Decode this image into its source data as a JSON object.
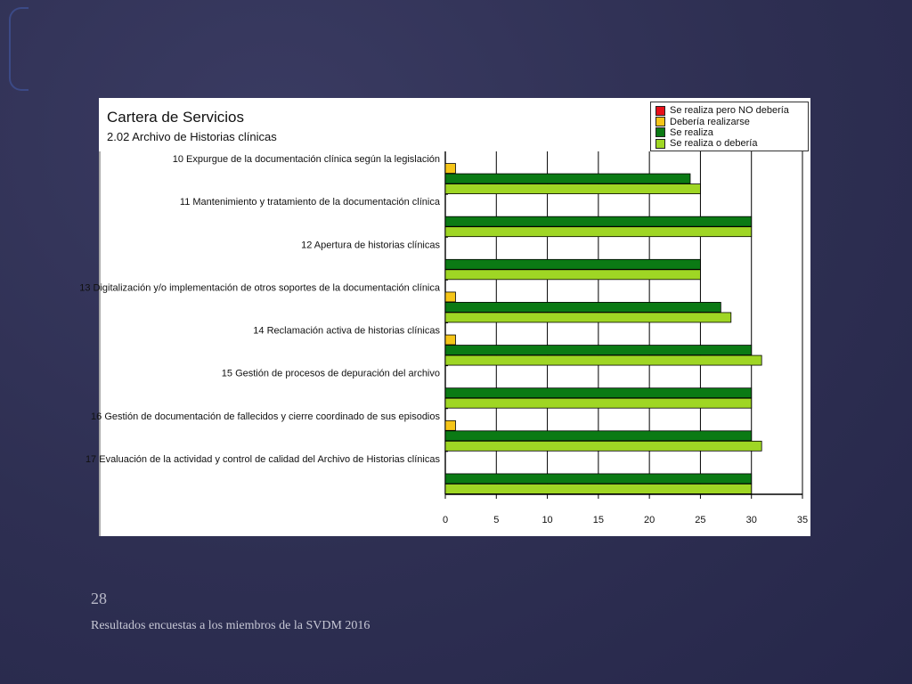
{
  "slide": {
    "number": "28",
    "footer": "Resultados encuestas a los miembros de la SVDM 2016"
  },
  "chart_data": {
    "type": "bar",
    "orientation": "horizontal",
    "title": "Cartera de Servicios",
    "subtitle": "2.02 Archivo de Historias clínicas",
    "categories": [
      "10 Expurgue de la documentación clínica según la legislación",
      "11 Mantenimiento y tratamiento de la documentación clínica",
      "12 Apertura de historias clínicas",
      "13 Digitalización y/o implementación de otros soportes de la documentación clínica",
      "14 Reclamación activa de historias clínicas",
      "15 Gestión de procesos de depuración del archivo",
      "16 Gestión de documentación de fallecidos y cierre coordinado de sus episodios",
      "17 Evaluación de la actividad y control de calidad del Archivo de Historias clínicas"
    ],
    "series": [
      {
        "name": "Se realiza pero NO debería",
        "color": "#e8101a",
        "values": [
          0,
          0,
          0,
          0,
          0,
          0,
          0,
          0
        ]
      },
      {
        "name": "Debería realizarse",
        "color": "#f5c518",
        "values": [
          1,
          0,
          0,
          1,
          1,
          0,
          1,
          0
        ]
      },
      {
        "name": "Se realiza",
        "color": "#0b7a14",
        "values": [
          24,
          30,
          25,
          27,
          30,
          30,
          30,
          30
        ]
      },
      {
        "name": "Se realiza o debería",
        "color": "#9fd624",
        "values": [
          25,
          30,
          25,
          28,
          31,
          30,
          31,
          30
        ]
      }
    ],
    "xlim": [
      0,
      35
    ],
    "xticks": [
      0,
      5,
      10,
      15,
      20,
      25,
      30,
      35
    ],
    "grid": true,
    "legend_position": "top-right"
  }
}
